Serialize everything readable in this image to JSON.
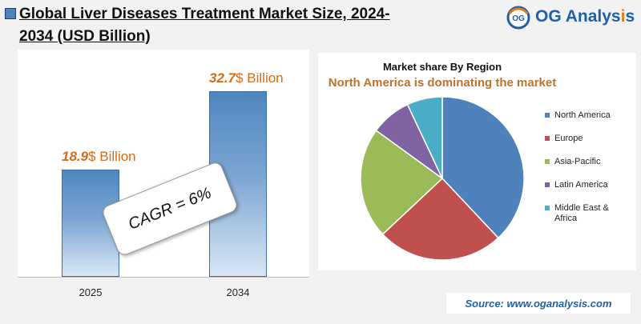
{
  "title": "Global Liver Diseases Treatment Market Size, 2024-2034 (USD Billion)",
  "logo": {
    "prefix": "OG Analys",
    "accent": "i",
    "suffix": "s",
    "mark": "OG"
  },
  "bar_chart": {
    "bars": [
      {
        "category": "2025",
        "value_num": "18.9",
        "value_unit": "$ Billion"
      },
      {
        "category": "2034",
        "value_num": "32.7",
        "value_unit": "$ Billion"
      }
    ],
    "cagr": "CAGR = 6%"
  },
  "pie_chart": {
    "title": "Market share By Region",
    "subtitle": "North America is dominating the market"
  },
  "source": "Source: www.oganalysis.com",
  "colors": {
    "north_america": "#4f81bd",
    "europe": "#c0504d",
    "asia_pacific": "#9bbb59",
    "latin_america": "#8064a2",
    "middle_east_africa": "#4bacc6",
    "accent_orange": "#d66b16"
  },
  "chart_data": [
    {
      "type": "bar",
      "title": "Global Liver Diseases Treatment Market Size, 2024-2034 (USD Billion)",
      "categories": [
        "2025",
        "2034"
      ],
      "values": [
        18.9,
        32.7
      ],
      "ylim": [
        0,
        40
      ]
    },
    {
      "type": "pie",
      "title": "Market share By Region",
      "legend": "right",
      "series": [
        {
          "name": "North America",
          "value": 38,
          "color": "#4f81bd"
        },
        {
          "name": "Europe",
          "value": 25,
          "color": "#c0504d"
        },
        {
          "name": "Asia-Pacific",
          "value": 22,
          "color": "#9bbb59"
        },
        {
          "name": "Latin America",
          "value": 8,
          "color": "#8064a2"
        },
        {
          "name": "Middle East & Africa",
          "value": 7,
          "color": "#4bacc6"
        }
      ]
    }
  ]
}
